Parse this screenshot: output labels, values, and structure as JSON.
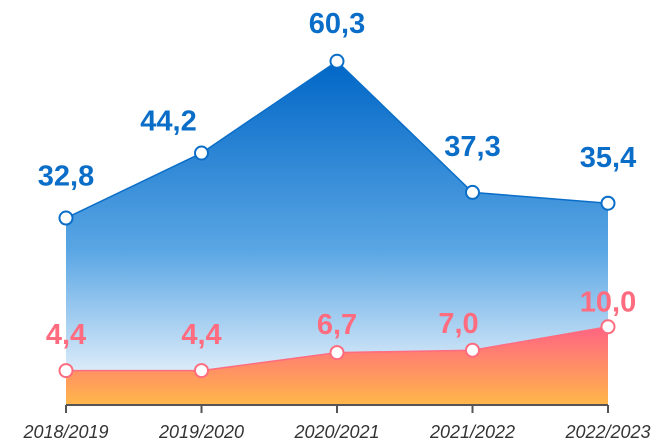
{
  "chart_data": {
    "type": "area",
    "categories": [
      "2018/2019",
      "2019/2020",
      "2020/2021",
      "2021/2022",
      "2022/2023"
    ],
    "series": [
      {
        "color": "#0a6ec8",
        "values": [
          32.8,
          44.2,
          60.3,
          37.3,
          35.4
        ],
        "value_labels": [
          "32,8",
          "44,2",
          "60,3",
          "37,3",
          "35,4"
        ]
      },
      {
        "color": "#ff6b7f",
        "axis": "y2",
        "values": [
          4.4,
          4.4,
          6.7,
          7.0,
          10.0
        ],
        "value_labels": [
          "4,4",
          "4,4",
          "6,7",
          "7,0",
          "10,0"
        ]
      }
    ],
    "ylim": [
      0,
      70
    ],
    "y2lim": [
      0,
      51
    ]
  }
}
